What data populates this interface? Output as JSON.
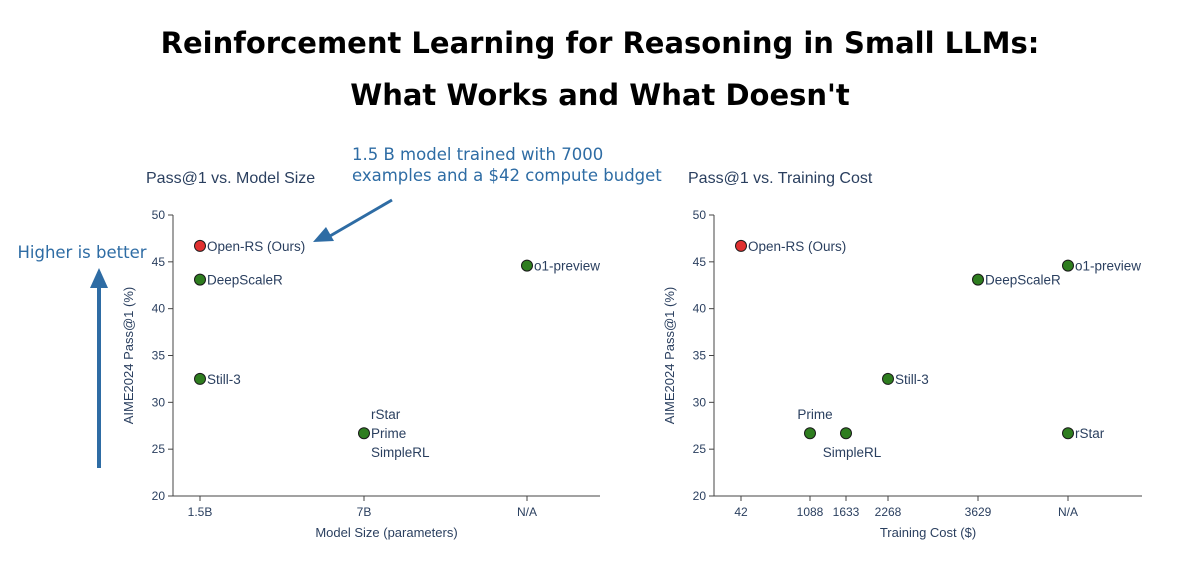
{
  "title": {
    "line1": "Reinforcement Learning for Reasoning in Small LLMs:",
    "line2": "What Works and What Doesn't"
  },
  "annotations": {
    "higher_is_better": "Higher is better",
    "callout_line1": "1.5 B model trained with 7000",
    "callout_line2": "examples and a $42 compute budget"
  },
  "colors": {
    "highlight": "#e03030",
    "default": "#2e7d1f",
    "marker_edge": "#1a1a1a",
    "annotation": "#2e6ca4"
  },
  "chart_data": [
    {
      "type": "scatter",
      "title": "Pass@1 vs. Model Size",
      "xlabel": "Model Size (parameters)",
      "ylabel": "AIME2024 Pass@1 (%)",
      "ylim": [
        20,
        50
      ],
      "yticks": [
        20,
        25,
        30,
        35,
        40,
        45,
        50
      ],
      "xcategories": [
        "1.5B",
        "7B",
        "N/A"
      ],
      "points": [
        {
          "name": "Open-RS (Ours)",
          "x": "1.5B",
          "y": 46.7,
          "highlight": true
        },
        {
          "name": "DeepScaleR",
          "x": "1.5B",
          "y": 43.1,
          "highlight": false
        },
        {
          "name": "Still-3",
          "x": "1.5B",
          "y": 32.5,
          "highlight": false
        },
        {
          "name": "rStar",
          "x": "7B",
          "y": 26.7,
          "highlight": false
        },
        {
          "name": "Prime",
          "x": "7B",
          "y": 26.7,
          "highlight": false
        },
        {
          "name": "SimpleRL",
          "x": "7B",
          "y": 26.7,
          "highlight": false
        },
        {
          "name": "o1-preview",
          "x": "N/A",
          "y": 44.6,
          "highlight": false
        }
      ]
    },
    {
      "type": "scatter",
      "title": "Pass@1 vs. Training Cost",
      "xlabel": "Training Cost ($)",
      "ylabel": "AIME2024 Pass@1 (%)",
      "ylim": [
        20,
        50
      ],
      "yticks": [
        20,
        25,
        30,
        35,
        40,
        45,
        50
      ],
      "xcategories": [
        "42",
        "1088",
        "1633",
        "2268",
        "3629",
        "N/A"
      ],
      "points": [
        {
          "name": "Open-RS (Ours)",
          "x": "42",
          "y": 46.7,
          "highlight": true
        },
        {
          "name": "Prime",
          "x": "1088",
          "y": 26.7,
          "highlight": false
        },
        {
          "name": "SimpleRL",
          "x": "1633",
          "y": 26.7,
          "highlight": false
        },
        {
          "name": "Still-3",
          "x": "2268",
          "y": 32.5,
          "highlight": false
        },
        {
          "name": "DeepScaleR",
          "x": "3629",
          "y": 43.1,
          "highlight": false
        },
        {
          "name": "o1-preview",
          "x": "N/A",
          "y": 44.6,
          "highlight": false
        },
        {
          "name": "rStar",
          "x": "N/A",
          "y": 26.7,
          "highlight": false
        }
      ]
    }
  ]
}
